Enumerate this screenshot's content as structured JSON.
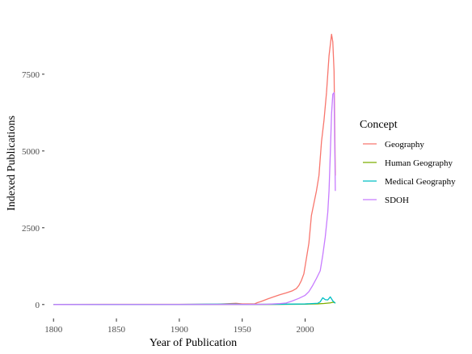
{
  "chart_data": {
    "type": "line",
    "title": "",
    "xlabel": "Year of Publication",
    "ylabel": "Indexed Publications",
    "xlim": [
      1796,
      2026
    ],
    "ylim": [
      -400,
      9600
    ],
    "x_ticks": [
      1800,
      1850,
      1900,
      1950,
      2000
    ],
    "x_tick_labels": [
      "1800",
      "1850",
      "1900",
      "1950",
      "2000"
    ],
    "y_ticks": [
      0,
      2500,
      5000,
      7500
    ],
    "y_tick_labels": [
      "0",
      "2500",
      "5000",
      "7500"
    ],
    "grid": false,
    "legend": {
      "title": "Concept",
      "placement": "right"
    },
    "series": [
      {
        "name": "Geography",
        "color": "#F8766D",
        "points": [
          [
            1800,
            5
          ],
          [
            1850,
            6
          ],
          [
            1900,
            8
          ],
          [
            1930,
            12
          ],
          [
            1945,
            40
          ],
          [
            1950,
            20
          ],
          [
            1960,
            25
          ],
          [
            1962,
            60
          ],
          [
            1965,
            100
          ],
          [
            1970,
            180
          ],
          [
            1975,
            250
          ],
          [
            1980,
            320
          ],
          [
            1985,
            380
          ],
          [
            1990,
            450
          ],
          [
            1993,
            520
          ],
          [
            1995,
            620
          ],
          [
            1997,
            780
          ],
          [
            1999,
            1000
          ],
          [
            2001,
            1500
          ],
          [
            2003,
            2000
          ],
          [
            2005,
            2900
          ],
          [
            2007,
            3300
          ],
          [
            2009,
            3700
          ],
          [
            2011,
            4200
          ],
          [
            2013,
            5300
          ],
          [
            2015,
            6000
          ],
          [
            2017,
            6900
          ],
          [
            2019,
            8100
          ],
          [
            2021,
            8800
          ],
          [
            2022,
            8550
          ],
          [
            2023,
            7600
          ],
          [
            2024,
            4200
          ]
        ]
      },
      {
        "name": "Human Geography",
        "color": "#7CAE00",
        "points": [
          [
            1800,
            0
          ],
          [
            1900,
            1
          ],
          [
            1950,
            3
          ],
          [
            1980,
            6
          ],
          [
            2000,
            12
          ],
          [
            2010,
            22
          ],
          [
            2015,
            35
          ],
          [
            2020,
            55
          ],
          [
            2022,
            75
          ],
          [
            2024,
            60
          ]
        ]
      },
      {
        "name": "Medical Geography",
        "color": "#00BFC4",
        "points": [
          [
            1800,
            2
          ],
          [
            1850,
            3
          ],
          [
            1900,
            4
          ],
          [
            1945,
            15
          ],
          [
            1950,
            5
          ],
          [
            1980,
            10
          ],
          [
            2000,
            20
          ],
          [
            2010,
            40
          ],
          [
            2012,
            90
          ],
          [
            2014,
            220
          ],
          [
            2016,
            160
          ],
          [
            2018,
            150
          ],
          [
            2020,
            250
          ],
          [
            2022,
            120
          ],
          [
            2024,
            40
          ]
        ]
      },
      {
        "name": "SDOH",
        "color": "#C77CFF",
        "points": [
          [
            1800,
            0
          ],
          [
            1950,
            2
          ],
          [
            1970,
            10
          ],
          [
            1980,
            30
          ],
          [
            1985,
            50
          ],
          [
            1990,
            120
          ],
          [
            1995,
            200
          ],
          [
            2000,
            300
          ],
          [
            2003,
            420
          ],
          [
            2006,
            620
          ],
          [
            2009,
            850
          ],
          [
            2012,
            1100
          ],
          [
            2014,
            1600
          ],
          [
            2016,
            2200
          ],
          [
            2018,
            3000
          ],
          [
            2019,
            3700
          ],
          [
            2020,
            4900
          ],
          [
            2021,
            6200
          ],
          [
            2022,
            6850
          ],
          [
            2023,
            6900
          ],
          [
            2024,
            3700
          ]
        ]
      }
    ]
  }
}
